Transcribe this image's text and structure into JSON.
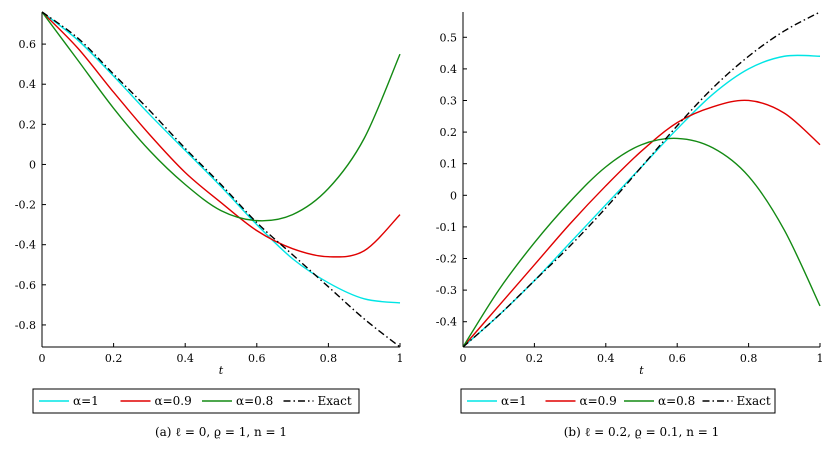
{
  "chart_data": [
    {
      "type": "line",
      "caption": "(a) ℓ = 0, ϱ = 1, n = 1",
      "xlabel": "t",
      "ylabel": "",
      "xlim": [
        0,
        1
      ],
      "ylim": [
        -0.91,
        0.76
      ],
      "x_ticks": [
        "0",
        "0.2",
        "0.4",
        "0.6",
        "0.8",
        "1"
      ],
      "y_ticks": [
        "0.6",
        "0.4",
        "0.2",
        "0",
        "-0.2",
        "-0.4",
        "-0.6",
        "-0.8"
      ],
      "x": [
        0,
        0.1,
        0.2,
        0.3,
        0.4,
        0.5,
        0.6,
        0.7,
        0.8,
        0.9,
        1.0
      ],
      "series": [
        {
          "name": "α=1",
          "color": "#00e5e5",
          "dash": "solid",
          "values": [
            0.76,
            0.62,
            0.44,
            0.25,
            0.07,
            -0.11,
            -0.3,
            -0.47,
            -0.59,
            -0.67,
            -0.69
          ]
        },
        {
          "name": "α=0.9",
          "color": "#e00000",
          "dash": "solid",
          "values": [
            0.76,
            0.58,
            0.36,
            0.15,
            -0.04,
            -0.19,
            -0.33,
            -0.42,
            -0.46,
            -0.43,
            -0.25
          ]
        },
        {
          "name": "α=0.8",
          "color": "#138a13",
          "dash": "solid",
          "values": [
            0.76,
            0.52,
            0.28,
            0.07,
            -0.1,
            -0.23,
            -0.28,
            -0.25,
            -0.12,
            0.13,
            0.55
          ]
        },
        {
          "name": "Exact",
          "color": "#000000",
          "dash": "dashdot",
          "values": [
            0.76,
            0.63,
            0.45,
            0.27,
            0.08,
            -0.1,
            -0.29,
            -0.45,
            -0.61,
            -0.77,
            -0.91
          ]
        }
      ],
      "legend": {
        "position": "bottom"
      }
    },
    {
      "type": "line",
      "caption": "(b) ℓ = 0.2, ϱ = 0.1, n = 1",
      "xlabel": "t",
      "ylabel": "",
      "xlim": [
        0,
        1
      ],
      "ylim": [
        -0.48,
        0.58
      ],
      "x_ticks": [
        "0",
        "0.2",
        "0.4",
        "0.6",
        "0.8",
        "1"
      ],
      "y_ticks": [
        "0.5",
        "0.4",
        "0.3",
        "0.2",
        "0.1",
        "0",
        "-0.1",
        "-0.2",
        "-0.3",
        "-0.4"
      ],
      "x": [
        0,
        0.1,
        0.2,
        0.3,
        0.4,
        0.5,
        0.6,
        0.7,
        0.8,
        0.9,
        1.0
      ],
      "series": [
        {
          "name": "α=1",
          "color": "#00e5e5",
          "dash": "solid",
          "values": [
            -0.48,
            -0.38,
            -0.27,
            -0.15,
            -0.03,
            0.09,
            0.21,
            0.32,
            0.4,
            0.44,
            0.44
          ]
        },
        {
          "name": "α=0.9",
          "color": "#e00000",
          "dash": "solid",
          "values": [
            -0.48,
            -0.35,
            -0.22,
            -0.09,
            0.03,
            0.14,
            0.23,
            0.28,
            0.3,
            0.26,
            0.16
          ]
        },
        {
          "name": "α=0.8",
          "color": "#138a13",
          "dash": "solid",
          "values": [
            -0.48,
            -0.3,
            -0.15,
            -0.02,
            0.09,
            0.16,
            0.18,
            0.15,
            0.06,
            -0.11,
            -0.35
          ]
        },
        {
          "name": "Exact",
          "color": "#000000",
          "dash": "dashdot",
          "values": [
            -0.48,
            -0.38,
            -0.27,
            -0.16,
            -0.04,
            0.09,
            0.22,
            0.34,
            0.44,
            0.52,
            0.58
          ]
        }
      ],
      "legend": {
        "position": "bottom"
      }
    }
  ]
}
